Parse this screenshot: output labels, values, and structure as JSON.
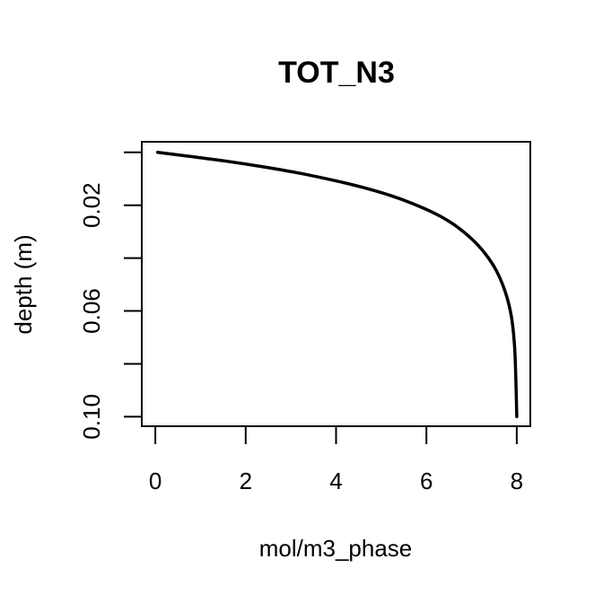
{
  "chart_data": {
    "type": "line",
    "title": "TOT_N3",
    "xlabel": "mol/m3_phase",
    "ylabel": "depth (m)",
    "xlim": [
      -0.3,
      8.3
    ],
    "ylim": [
      0.1036,
      -0.004
    ],
    "y_reversed": true,
    "grid": false,
    "x_ticks": [
      0,
      2,
      4,
      6,
      8
    ],
    "x_tick_labels": [
      "0",
      "2",
      "4",
      "6",
      "8"
    ],
    "y_ticks": [
      0.0,
      0.02,
      0.04,
      0.06,
      0.08,
      0.1
    ],
    "y_tick_labels": [
      "",
      "0.02",
      "",
      "0.06",
      "",
      "0.10"
    ],
    "series": [
      {
        "color": "#000000",
        "x": [
          0.05,
          0.8,
          1.6,
          2.4,
          3.2,
          4.0,
          4.6,
          5.2,
          5.7,
          6.2,
          6.6,
          7.0,
          7.3,
          7.55,
          7.75,
          7.88,
          7.95,
          7.98,
          8.0
        ],
        "y": [
          0.0,
          0.0016,
          0.0034,
          0.0055,
          0.0079,
          0.0108,
          0.0133,
          0.0163,
          0.0194,
          0.0232,
          0.0272,
          0.0327,
          0.0383,
          0.0448,
          0.053,
          0.062,
          0.073,
          0.086,
          0.1
        ]
      }
    ]
  }
}
